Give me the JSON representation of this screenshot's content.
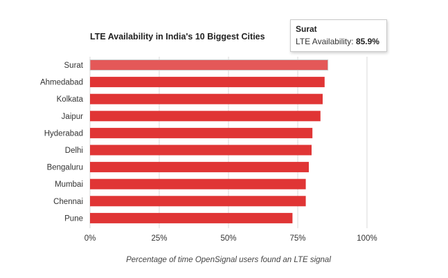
{
  "chart_data": {
    "type": "bar",
    "orientation": "horizontal",
    "title": "LTE Availability in India's 10 Biggest Cities",
    "xlabel": "Percentage of time OpenSignal users found an LTE signal",
    "ylabel": "",
    "categories": [
      "Surat",
      "Ahmedabad",
      "Kolkata",
      "Jaipur",
      "Hyderabad",
      "Delhi",
      "Bengaluru",
      "Mumbai",
      "Chennai",
      "Pune"
    ],
    "values": [
      85.9,
      84.7,
      84.0,
      83.2,
      80.3,
      80.0,
      79.0,
      77.9,
      77.9,
      73.1
    ],
    "xlim": [
      0,
      100
    ],
    "ticks": [
      "0%",
      "25%",
      "50%",
      "75%",
      "100%"
    ],
    "tick_values": [
      0,
      25,
      50,
      75,
      100
    ],
    "grid": true,
    "bar_color": "#e03535",
    "highlight_color": "#e45858"
  },
  "tooltip": {
    "title": "Surat",
    "label": "LTE Availability:",
    "value": "85.9%"
  }
}
